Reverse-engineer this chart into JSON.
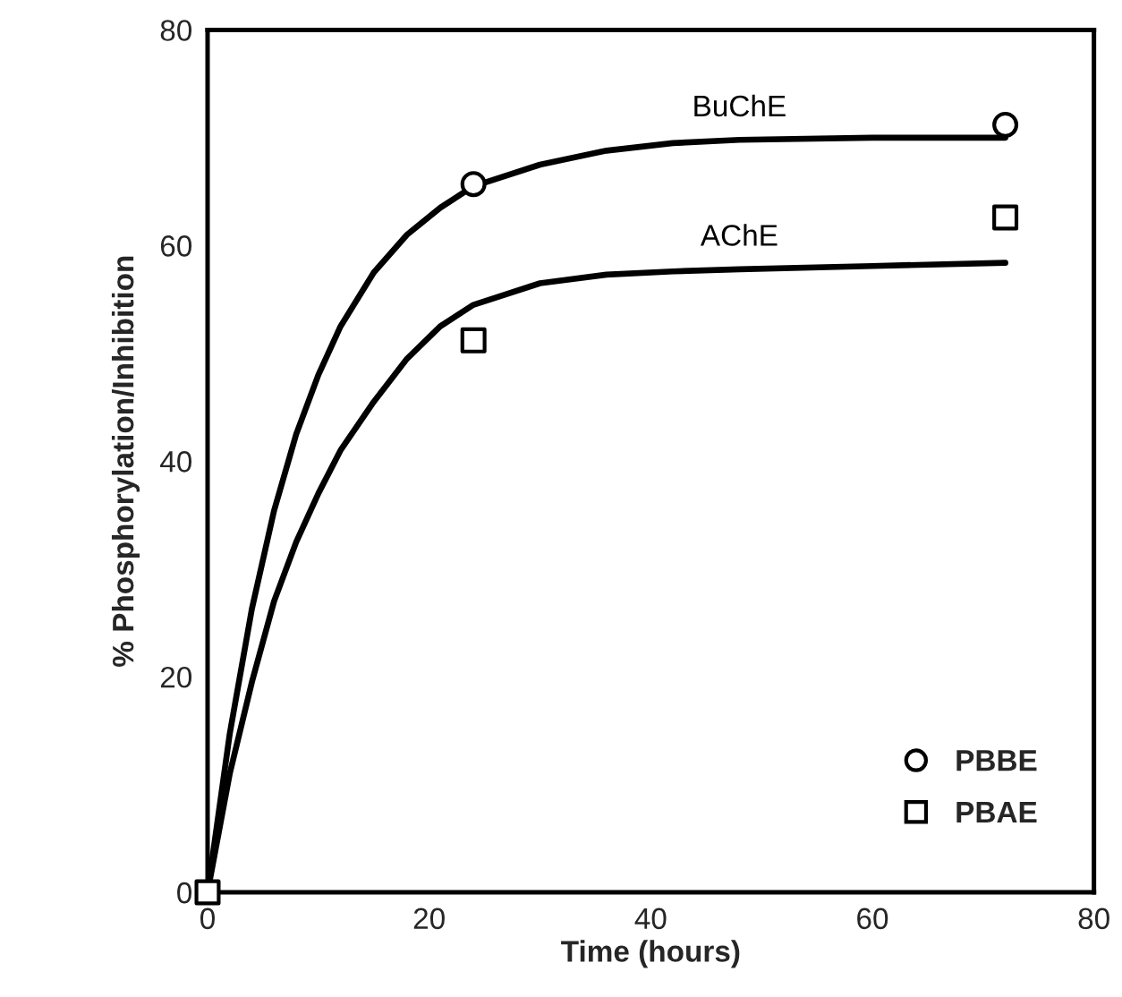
{
  "chart_data": {
    "type": "scatter",
    "xlabel": "Time (hours)",
    "ylabel": "% Phosphorylation/Inhibition",
    "xlim": [
      0,
      80
    ],
    "ylim": [
      0,
      80
    ],
    "xticks": [
      0,
      20,
      40,
      60,
      80
    ],
    "yticks": [
      0,
      20,
      40,
      60,
      80
    ],
    "grid": false,
    "legend": "bottom right",
    "series": [
      {
        "type": "line",
        "name": "BuChE",
        "color": "#000000",
        "line_style": "solid",
        "marker": "none",
        "x": [
          0,
          2,
          4,
          6,
          8,
          10,
          12,
          15,
          18,
          21,
          24,
          30,
          36,
          42,
          48,
          60,
          72
        ],
        "values": [
          0,
          14.7,
          26.3,
          35.4,
          42.5,
          48,
          52.5,
          57.5,
          61,
          63.5,
          65.5,
          67.5,
          68.8,
          69.5,
          69.8,
          70,
          70
        ]
      },
      {
        "type": "line",
        "name": "AChE",
        "color": "#000000",
        "line_style": "solid",
        "marker": "none",
        "x": [
          0,
          2,
          4,
          6,
          8,
          10,
          12,
          15,
          18,
          21,
          24,
          30,
          36,
          42,
          48,
          60,
          72
        ],
        "values": [
          0,
          11,
          19.5,
          27,
          32.5,
          37,
          41,
          45.5,
          49.5,
          52.5,
          54.5,
          56.5,
          57.3,
          57.6,
          57.8,
          58.1,
          58.4
        ]
      },
      {
        "name": "PBAE",
        "color": "#000000",
        "marker": "square",
        "x": [
          0,
          24,
          72
        ],
        "values": [
          0,
          51.2,
          62.6
        ]
      },
      {
        "name": "PBBE",
        "color": "#000000",
        "marker": "circle",
        "x": [
          24,
          72
        ],
        "values": [
          65.7,
          71.2
        ]
      }
    ]
  }
}
